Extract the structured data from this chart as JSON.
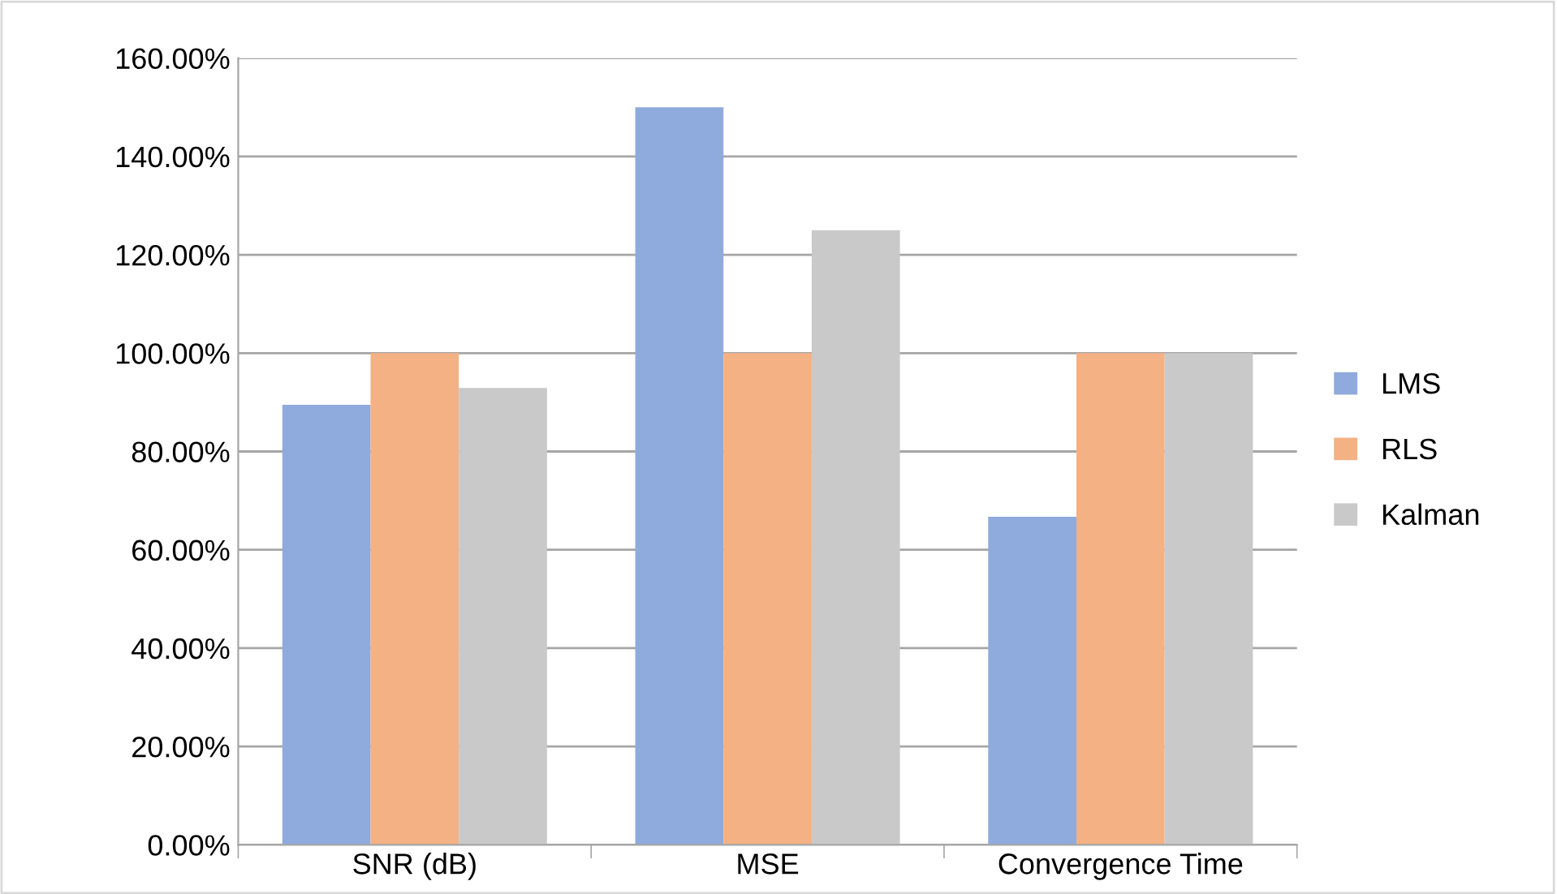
{
  "chart_data": {
    "type": "bar",
    "categories": [
      "SNR (dB)",
      "MSE",
      "Convergence Time"
    ],
    "series": [
      {
        "name": "LMS",
        "color": "#8faadc",
        "values": [
          89.5,
          150,
          66.7
        ]
      },
      {
        "name": "RLS",
        "color": "#f4b183",
        "values": [
          100,
          100,
          100
        ]
      },
      {
        "name": "Kalman",
        "color": "#c9c9c9",
        "values": [
          92.9,
          125,
          100
        ]
      }
    ],
    "ylim": [
      0,
      160
    ],
    "yticks": [
      {
        "value": 0,
        "label": "0.00%"
      },
      {
        "value": 20,
        "label": "20.00%"
      },
      {
        "value": 40,
        "label": "40.00%"
      },
      {
        "value": 60,
        "label": "60.00%"
      },
      {
        "value": 80,
        "label": "80.00%"
      },
      {
        "value": 100,
        "label": "100.00%"
      },
      {
        "value": 120,
        "label": "120.00%"
      },
      {
        "value": 140,
        "label": "140.00%"
      },
      {
        "value": 160,
        "label": "160.00%"
      }
    ],
    "grid": "y",
    "legend": "right"
  }
}
